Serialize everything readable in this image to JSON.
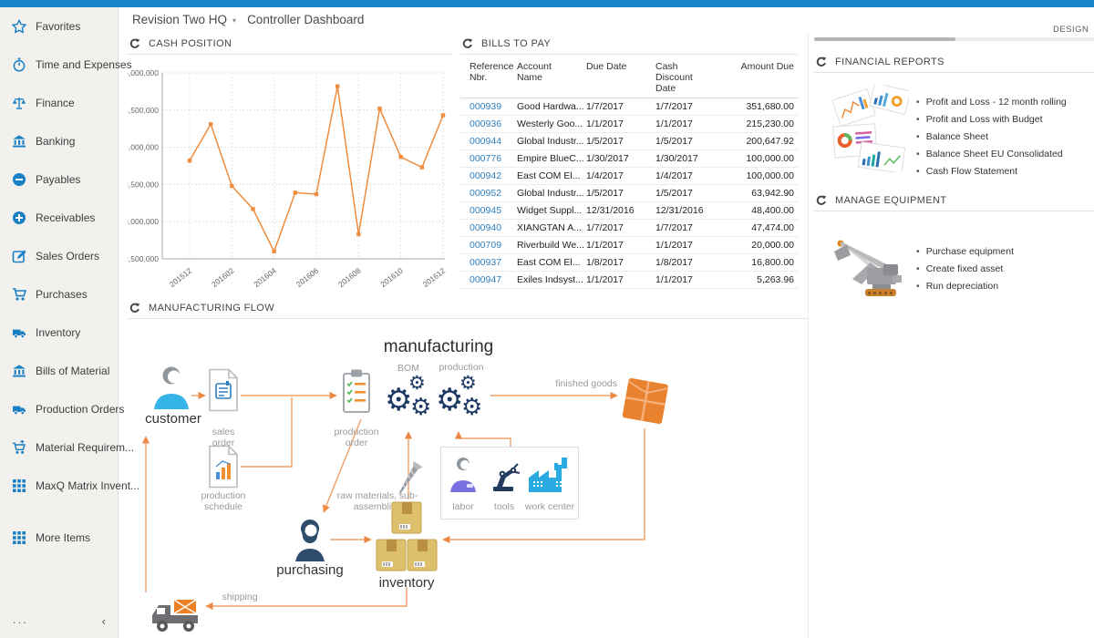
{
  "header": {
    "company": "Revision Two HQ",
    "caret": "▾",
    "page_title": "Controller Dashboard",
    "design_label": "DESIGN"
  },
  "colors": {
    "topbar": "#1886c9",
    "sidebar_icon_blue": "#1b7fc4",
    "link_blue": "#2e7fc0",
    "chart_orange": "#ef8c3d",
    "arrow_orange": "#f0a068",
    "gear_navy": "#1e3a66"
  },
  "sidebar": {
    "items": [
      {
        "label": "Favorites",
        "icon": "star"
      },
      {
        "label": "Time and Expenses",
        "icon": "stopwatch"
      },
      {
        "label": "Finance",
        "icon": "scales"
      },
      {
        "label": "Banking",
        "icon": "bank"
      },
      {
        "label": "Payables",
        "icon": "minus-circle"
      },
      {
        "label": "Receivables",
        "icon": "plus-circle"
      },
      {
        "label": "Sales Orders",
        "icon": "edit-square"
      },
      {
        "label": "Purchases",
        "icon": "cart"
      },
      {
        "label": "Inventory",
        "icon": "truck"
      },
      {
        "label": "Bills of Material",
        "icon": "bank"
      },
      {
        "label": "Production Orders",
        "icon": "truck"
      },
      {
        "label": "Material Requirem...",
        "icon": "cart-plus"
      },
      {
        "label": "MaxQ Matrix Invent...",
        "icon": "grid"
      },
      {
        "label": "More Items",
        "icon": "grid",
        "gap_before": true
      }
    ],
    "footer": {
      "more": "...",
      "collapse": "‹"
    }
  },
  "widgets": {
    "cash_position": {
      "title": "CASH POSITION"
    },
    "bills_to_pay": {
      "title": "BILLS TO PAY",
      "columns": [
        "Reference\nNbr.",
        "Account\nName",
        "Due Date",
        "Cash\nDiscount\nDate",
        "Amount Due"
      ],
      "rows": [
        {
          "ref": "000939",
          "account": "Good Hardwa...",
          "due": "1/7/2017",
          "discount": "1/7/2017",
          "amount": "351,680.00"
        },
        {
          "ref": "000936",
          "account": "Westerly Goo...",
          "due": "1/1/2017",
          "discount": "1/1/2017",
          "amount": "215,230.00"
        },
        {
          "ref": "000944",
          "account": "Global Industr...",
          "due": "1/5/2017",
          "discount": "1/5/2017",
          "amount": "200,647.92"
        },
        {
          "ref": "000776",
          "account": "Empire BlueC...",
          "due": "1/30/2017",
          "discount": "1/30/2017",
          "amount": "100,000.00"
        },
        {
          "ref": "000942",
          "account": "East COM El...",
          "due": "1/4/2017",
          "discount": "1/4/2017",
          "amount": "100,000.00"
        },
        {
          "ref": "000952",
          "account": "Global Industr...",
          "due": "1/5/2017",
          "discount": "1/5/2017",
          "amount": "63,942.90"
        },
        {
          "ref": "000945",
          "account": "Widget Suppl...",
          "due": "12/31/2016",
          "discount": "12/31/2016",
          "amount": "48,400.00"
        },
        {
          "ref": "000940",
          "account": "XIANGTAN A...",
          "due": "1/7/2017",
          "discount": "1/7/2017",
          "amount": "47,474.00"
        },
        {
          "ref": "000709",
          "account": "Riverbuild We...",
          "due": "1/1/2017",
          "discount": "1/1/2017",
          "amount": "20,000.00"
        },
        {
          "ref": "000937",
          "account": "East COM El...",
          "due": "1/8/2017",
          "discount": "1/8/2017",
          "amount": "16,800.00"
        },
        {
          "ref": "000947",
          "account": "Exiles Indsyst...",
          "due": "1/1/2017",
          "discount": "1/1/2017",
          "amount": "5,263.96"
        }
      ]
    },
    "financial_reports": {
      "title": "FINANCIAL REPORTS",
      "links": [
        "Profit and Loss - 12 month rolling",
        "Profit and Loss with Budget",
        "Balance Sheet",
        "Balance Sheet EU Consolidated",
        "Cash Flow Statement"
      ]
    },
    "manage_equipment": {
      "title": "MANAGE EQUIPMENT",
      "links": [
        "Purchase equipment",
        "Create fixed asset",
        "Run depreciation"
      ]
    },
    "manufacturing_flow": {
      "title": "MANUFACTURING FLOW",
      "labels": {
        "title": "manufacturing",
        "bom": "BOM",
        "production": "production",
        "customer": "customer",
        "sales_order": "sales order",
        "production_schedule": "production schedule",
        "production_order": "production order",
        "finished_goods": "finished goods",
        "raw_materials": "raw materials, sub-assemblies",
        "labor": "labor",
        "tools": "tools",
        "work_center": "work center",
        "purchasing": "purchasing",
        "inventory": "inventory",
        "shipping": "shipping"
      }
    }
  },
  "chart_data": {
    "type": "line",
    "title": "Cash Position",
    "x": [
      "201512",
      "201601",
      "201602",
      "201603",
      "201604",
      "201605",
      "201606",
      "201607",
      "201608",
      "201609",
      "201610",
      "201611",
      "201612"
    ],
    "values": [
      63820000,
      64310000,
      63480000,
      63170000,
      62600000,
      63390000,
      63370000,
      64820000,
      62830000,
      64520000,
      63870000,
      63730000,
      64430000
    ],
    "xticks_shown": [
      "201512",
      "201602",
      "201604",
      "201606",
      "201608",
      "201610",
      "201612"
    ],
    "xtick_every": 2,
    "ylim": [
      62500000,
      65000000
    ],
    "ytick_step": 500000,
    "line_color": "#ef8c3d",
    "grid": true,
    "legend": "none",
    "xlabel": "",
    "ylabel": ""
  }
}
